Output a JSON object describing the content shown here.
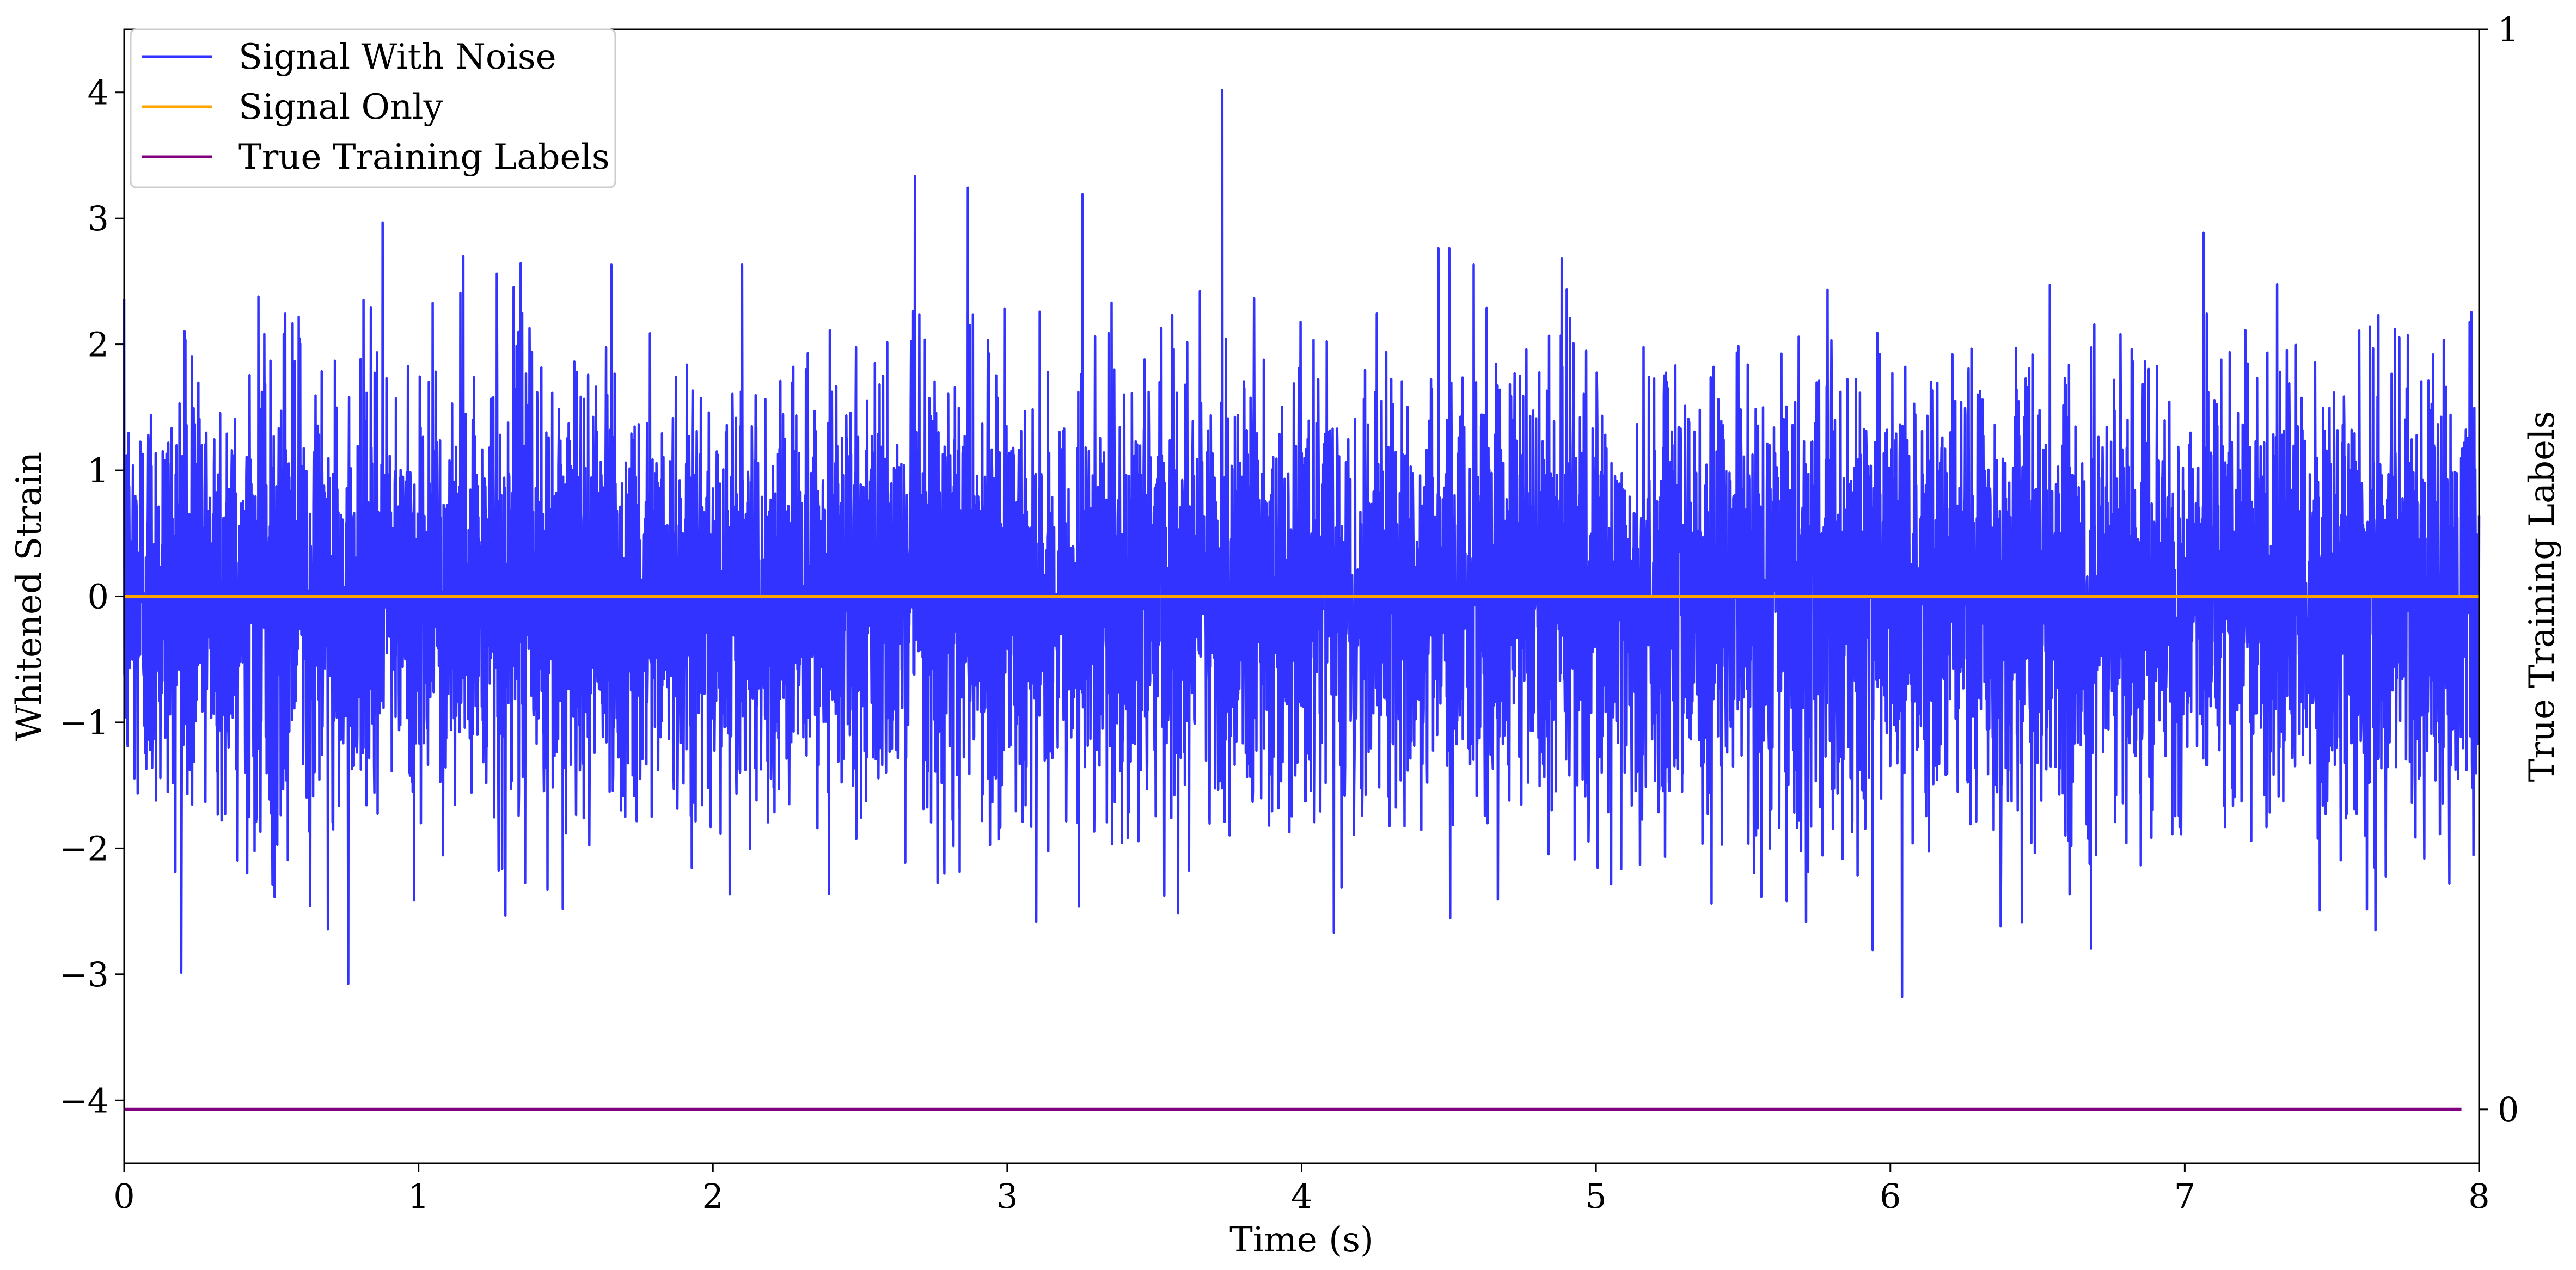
{
  "chart_data": {
    "type": "line",
    "xlabel": "Time (s)",
    "ylabel": "Whitened Strain",
    "y2label": "True Training Labels",
    "xlim": [
      0,
      8
    ],
    "ylim": [
      -4.5,
      4.5
    ],
    "y2lim": [
      -0.05,
      1.0
    ],
    "xticks": [
      0,
      1,
      2,
      3,
      4,
      5,
      6,
      7,
      8
    ],
    "xtick_labels": [
      "0",
      "1",
      "2",
      "3",
      "4",
      "5",
      "6",
      "7",
      "8"
    ],
    "yticks": [
      4,
      3,
      2,
      1,
      0,
      -1,
      -2,
      -3,
      -4
    ],
    "ytick_labels": [
      "4",
      "3",
      "2",
      "1",
      "0",
      "−1",
      "−2",
      "−3",
      "−4"
    ],
    "y2ticks": [
      1,
      0
    ],
    "y2tick_labels": [
      "1",
      "0"
    ],
    "grid": false,
    "legend": {
      "position": "top-left",
      "entries": [
        {
          "label": "Signal With Noise",
          "color": "#3333ff"
        },
        {
          "label": "Signal Only",
          "color": "#ffa500"
        },
        {
          "label": "True Training Labels",
          "color": "#800080"
        }
      ]
    },
    "series": [
      {
        "name": "Signal With Noise",
        "color": "#3333ff",
        "description_type": "gaussian-noise",
        "x_range": [
          0,
          8
        ],
        "mean": 0,
        "std": 0.85,
        "max": 4.02,
        "max_at": 3.73,
        "min": -3.18,
        "min_at": 6.04
      },
      {
        "name": "Signal Only",
        "color": "#ffa500",
        "x": [
          0,
          8
        ],
        "y": [
          0,
          0
        ]
      },
      {
        "name": "True Training Labels",
        "color": "#800080",
        "axis": "right",
        "x": [
          0,
          7.94
        ],
        "y": [
          0,
          0
        ]
      }
    ]
  }
}
